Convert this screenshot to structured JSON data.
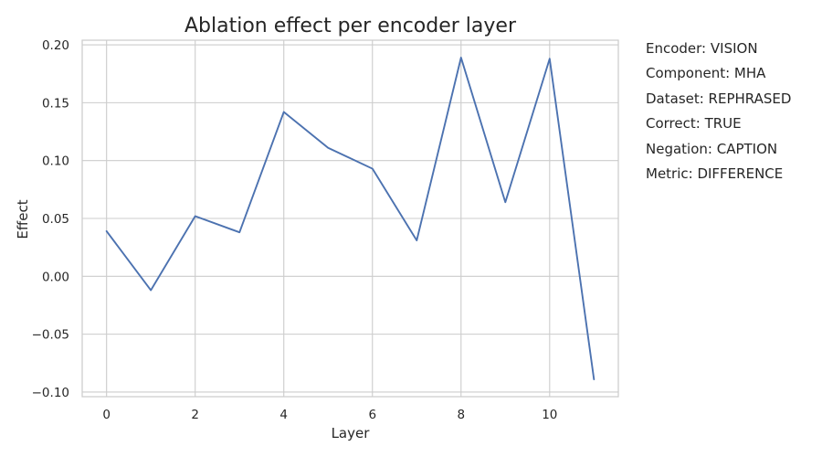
{
  "chart_data": {
    "type": "line",
    "title": "Ablation effect per encoder layer",
    "xlabel": "Layer",
    "ylabel": "Effect",
    "x": [
      0,
      1,
      2,
      3,
      4,
      5,
      6,
      7,
      8,
      9,
      10,
      11
    ],
    "series": [
      {
        "values": [
          0.039,
          -0.012,
          0.052,
          0.038,
          0.142,
          0.111,
          0.093,
          0.031,
          0.189,
          0.064,
          0.188,
          -0.089
        ],
        "color": "#4c72b0"
      }
    ],
    "xlim": [
      -0.55,
      11.55
    ],
    "ylim": [
      -0.104,
      0.204
    ],
    "xticks": [
      0,
      2,
      4,
      6,
      8,
      10
    ],
    "xtick_labels": [
      "0",
      "2",
      "4",
      "6",
      "8",
      "10"
    ],
    "yticks": [
      0.2,
      0.15,
      0.1,
      0.05,
      0.0,
      -0.05,
      -0.1
    ],
    "ytick_labels": [
      "0.20",
      "0.15",
      "0.10",
      "0.05",
      "0.00",
      "−0.05",
      "−0.10"
    ],
    "grid": true,
    "grid_color": "#cccccc",
    "background_color": "#ffffff"
  },
  "info": {
    "encoder": "Encoder: VISION",
    "component": "Component: MHA",
    "dataset": "Dataset: REPHRASED",
    "correct": "Correct: TRUE",
    "negation": "Negation: CAPTION",
    "metric": "Metric: DIFFERENCE"
  }
}
